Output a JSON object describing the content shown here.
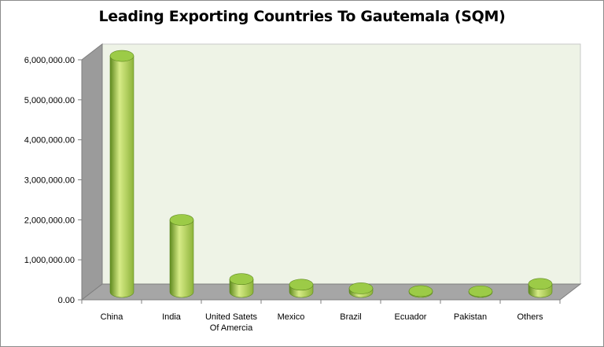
{
  "chart_data": {
    "type": "bar",
    "title": "Leading Exporting Countries To Gautemala (SQM)",
    "xlabel": "",
    "ylabel": "",
    "ylim": [
      0,
      6000000
    ],
    "yticks": [
      "0.00",
      "1,000,000.00",
      "2,000,000.00",
      "3,000,000.00",
      "4,000,000.00",
      "5,000,000.00",
      "6,000,000.00"
    ],
    "categories": [
      "China",
      "India",
      "United Satets Of Amercia",
      "Mexico",
      "Brazil",
      "Ecuador",
      "Pakistan",
      "Others"
    ],
    "category_lines": [
      [
        "China"
      ],
      [
        "India"
      ],
      [
        "United Satets",
        "Of Amercia"
      ],
      [
        "Mexico"
      ],
      [
        "Brazil"
      ],
      [
        "Ecuador"
      ],
      [
        "Pakistan"
      ],
      [
        "Others"
      ]
    ],
    "values": [
      5900000,
      1800000,
      320000,
      180000,
      90000,
      20000,
      15000,
      200000
    ],
    "grid": false,
    "legend": "none",
    "colors": {
      "bar": "#8db33a",
      "bar_light": "#d6eb86",
      "bar_dark": "#5f8a1f",
      "bar_top": "#9ccb47",
      "wall": "#eef3e6",
      "side_wall": "#9b9b9b",
      "floor": "#a6a6a6"
    }
  }
}
